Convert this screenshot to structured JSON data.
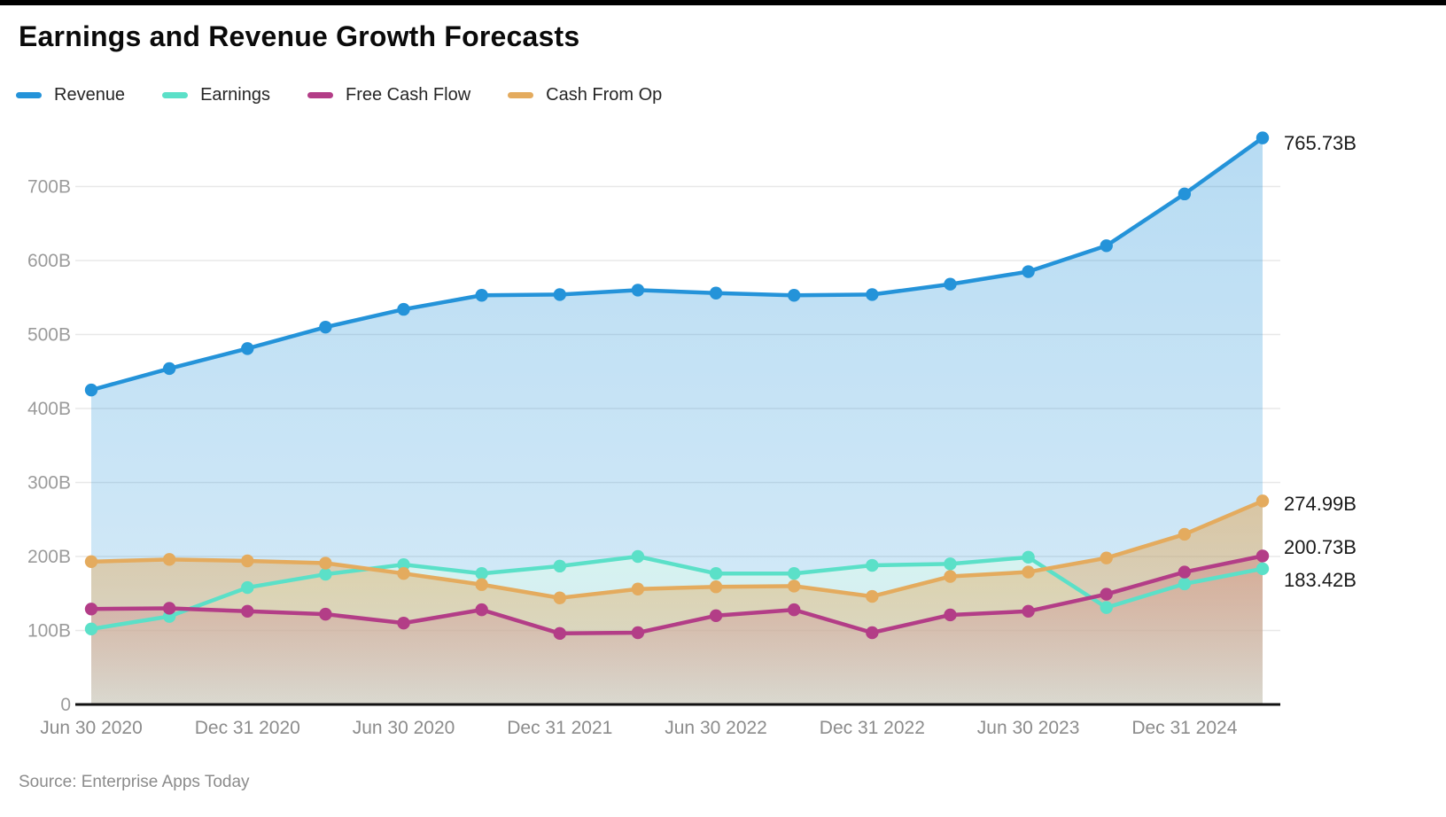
{
  "title": "Earnings and Revenue Growth Forecasts",
  "source": "Source: Enterprise Apps Today",
  "colors": {
    "revenue": "#2493D9",
    "earnings": "#5BE0C8",
    "free_cash_flow": "#B33D87",
    "cash_from_op": "#E4AB5E",
    "grid": "#E8E8E8",
    "axis_line": "#111111",
    "y_tick_text": "#9B9B9B",
    "x_tick_text": "#8C8C8C",
    "end_label_text": "#1A1A1A"
  },
  "chart_data": {
    "type": "area",
    "title": "Earnings and Revenue Growth Forecasts",
    "legend_position": "top-left",
    "grid": "horizontal",
    "n_points": 16,
    "x_tick_labels": [
      "Jun 30 2020",
      "Dec 31 2020",
      "Jun 30 2020",
      "Dec 31 2021",
      "Jun 30 2022",
      "Dec 31 2022",
      "Jun 30 2023",
      "Dec 31 2024"
    ],
    "x_tick_positions": [
      0,
      2,
      4,
      6,
      8,
      10,
      12,
      14
    ],
    "y_unit": "B",
    "ylim": [
      0,
      780
    ],
    "y_ticks": [
      {
        "v": 0,
        "label": "0"
      },
      {
        "v": 100,
        "label": "100B"
      },
      {
        "v": 200,
        "label": "200B"
      },
      {
        "v": 300,
        "label": "300B"
      },
      {
        "v": 400,
        "label": "400B"
      },
      {
        "v": 500,
        "label": "500B"
      },
      {
        "v": 600,
        "label": "600B"
      },
      {
        "v": 700,
        "label": "700B"
      }
    ],
    "series": [
      {
        "name": "Revenue",
        "key": "revenue",
        "color": "#2493D9",
        "end_label": "765.73B",
        "values": [
          425,
          454,
          481,
          510,
          534,
          553,
          554,
          560,
          556,
          553,
          554,
          568,
          585,
          620,
          690,
          765.73
        ]
      },
      {
        "name": "Earnings",
        "key": "earnings",
        "color": "#5BE0C8",
        "end_label": "183.42B",
        "values": [
          102,
          119,
          158,
          176,
          189,
          177,
          187,
          200,
          177,
          177,
          188,
          190,
          199,
          131,
          163,
          183.42
        ]
      },
      {
        "name": "Free Cash Flow",
        "key": "free_cash_flow",
        "color": "#B33D87",
        "end_label": "200.73B",
        "values": [
          129,
          130,
          126,
          122,
          110,
          128,
          96,
          97,
          120,
          128,
          97,
          121,
          126,
          149,
          179,
          200.73
        ]
      },
      {
        "name": "Cash From Op",
        "key": "cash_from_op",
        "color": "#E4AB5E",
        "end_label": "274.99B",
        "values": [
          193,
          196,
          194,
          191,
          177,
          162,
          144,
          156,
          159,
          160,
          146,
          173,
          179,
          198,
          230,
          274.99
        ]
      }
    ]
  }
}
